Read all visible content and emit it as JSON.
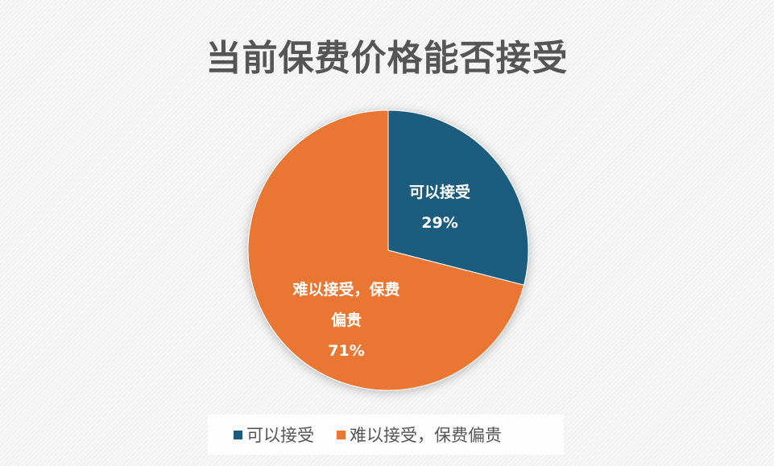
{
  "chart_data": {
    "type": "pie",
    "title": "当前保费价格能否接受",
    "slices": [
      {
        "label": "可以接受",
        "value": 29,
        "data_label_lines": [
          "可以接受",
          "29%"
        ],
        "color": "#1b5c7e"
      },
      {
        "label": "难以接受，保费偏贵",
        "value": 71,
        "data_label_lines": [
          "难以接受，保费",
          "偏贵",
          "71%"
        ],
        "color": "#e97632"
      }
    ],
    "legend_position": "bottom",
    "legend": [
      "可以接受",
      "难以接受，保费偏贵"
    ]
  }
}
